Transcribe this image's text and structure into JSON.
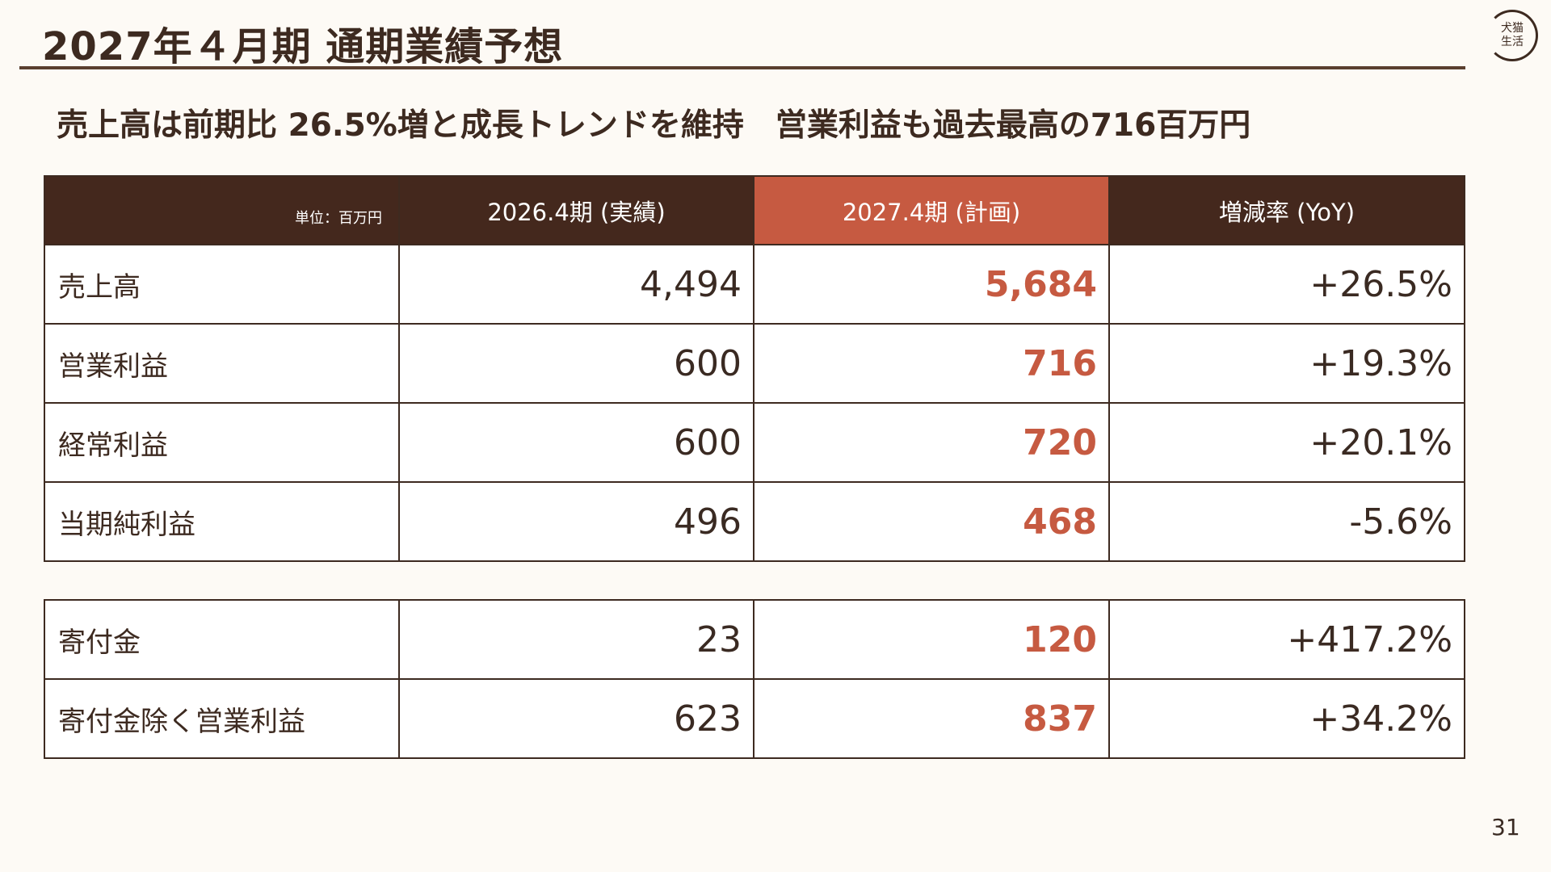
{
  "title": "2027年４月期 通期業績予想",
  "subtitle": "売上高は前期比 26.5%増と成長トレンドを維持　営業利益も過去最高の716百万円",
  "logo": {
    "line1": "犬猫",
    "line2": "生活"
  },
  "table": {
    "unit_label": "単位：百万円",
    "headers": [
      "2026.4期 (実績)",
      "2027.4期 (計画)",
      "増減率 (YoY)"
    ],
    "rows": [
      {
        "label": "売上高",
        "actual": "4,494",
        "plan": "5,684",
        "yoy": "+26.5%"
      },
      {
        "label": "営業利益",
        "actual": "600",
        "plan": "716",
        "yoy": "+19.3%"
      },
      {
        "label": "経常利益",
        "actual": "600",
        "plan": "720",
        "yoy": "+20.1%"
      },
      {
        "label": "当期純利益",
        "actual": "496",
        "plan": "468",
        "yoy": "-5.6%"
      }
    ],
    "sub_rows": [
      {
        "label": "寄付金",
        "actual": "23",
        "plan": "120",
        "yoy": "+417.2%"
      },
      {
        "label": "寄付金除く営業利益",
        "actual": "623",
        "plan": "837",
        "yoy": "+34.2%"
      }
    ]
  },
  "page_number": "31",
  "colors": {
    "accent": "#c65a41",
    "header": "#44281d",
    "background": "#fdfaf5",
    "text": "#3d2a20"
  }
}
